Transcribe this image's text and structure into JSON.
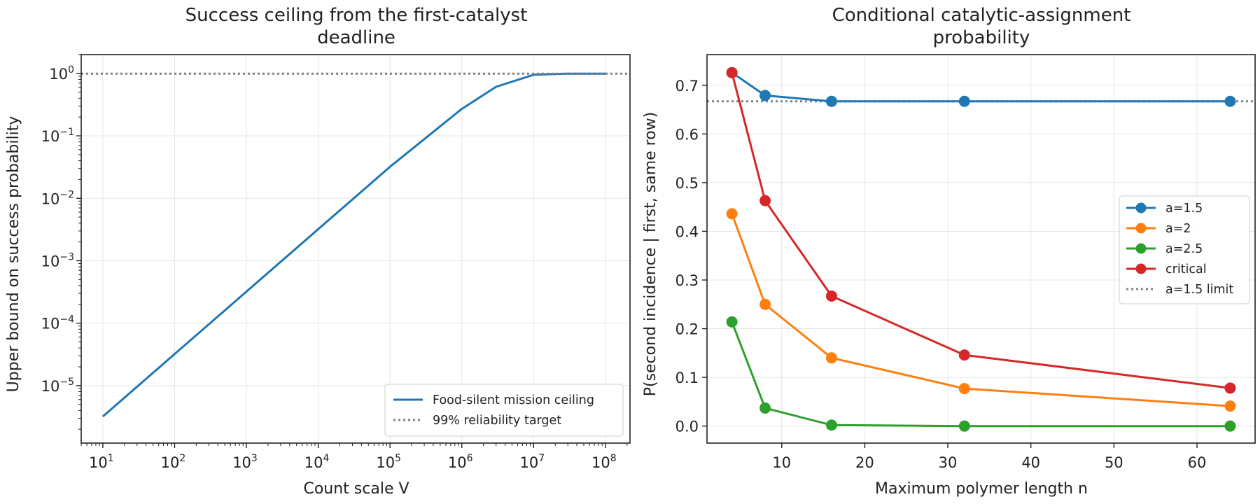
{
  "chart_data": [
    {
      "type": "line",
      "title_lines": [
        "Success ceiling from the first-catalyst",
        "deadline"
      ],
      "xlabel": "Count scale V",
      "ylabel": "Upper bound on success probability",
      "xscale": "log",
      "yscale": "log",
      "xlim": [
        5,
        220000000.0
      ],
      "ylim": [
        1.2e-06,
        2.0
      ],
      "xtick_exponents": [
        "1",
        "2",
        "3",
        "4",
        "5",
        "6",
        "7",
        "8"
      ],
      "ytick_exponents": [
        "0",
        "−1",
        "−2",
        "−3",
        "−4",
        "−5"
      ],
      "tick_base": "10",
      "grid": true,
      "legend_position": "lower right",
      "series": [
        {
          "name": "Food-silent mission ceiling",
          "color": "#1f77b4",
          "style": "solid",
          "x": [
            10,
            100,
            1000,
            10000,
            100000,
            1000000,
            3000000,
            10000000,
            30000000,
            100000000
          ],
          "y": [
            3.2e-06,
            3.2e-05,
            0.00032,
            0.0032,
            0.032,
            0.27,
            0.61,
            0.95,
            0.99,
            0.99
          ]
        },
        {
          "name": "99% reliability target",
          "color": "#808080",
          "style": "dotted",
          "y_const": 0.99
        }
      ]
    },
    {
      "type": "line",
      "title_lines": [
        "Conditional catalytic-assignment",
        "probability"
      ],
      "xlabel": "Maximum polymer length n",
      "ylabel": "P(second incidence | first, same row)",
      "xlim": [
        1,
        67
      ],
      "ylim": [
        -0.035,
        0.763
      ],
      "xticks": [
        10,
        20,
        30,
        40,
        50,
        60
      ],
      "yticks": [
        "0.0",
        "0.1",
        "0.2",
        "0.3",
        "0.4",
        "0.5",
        "0.6",
        "0.7"
      ],
      "grid": true,
      "legend_position": "center right",
      "x": [
        4,
        8,
        16,
        32,
        64
      ],
      "series": [
        {
          "name": "a=1.5",
          "color": "#1f77b4",
          "marker": "o",
          "values": [
            0.726,
            0.679,
            0.667,
            0.667,
            0.667
          ]
        },
        {
          "name": "a=2",
          "color": "#ff7f0e",
          "marker": "o",
          "values": [
            0.436,
            0.25,
            0.14,
            0.077,
            0.041
          ]
        },
        {
          "name": "a=2.5",
          "color": "#2ca02c",
          "marker": "o",
          "values": [
            0.214,
            0.037,
            0.002,
            0.0,
            0.0
          ]
        },
        {
          "name": "critical",
          "color": "#d62728",
          "marker": "o",
          "values": [
            0.726,
            0.463,
            0.267,
            0.146,
            0.078
          ]
        },
        {
          "name": "a=1.5 limit",
          "color": "#808080",
          "style": "dotted",
          "y_const": 0.667
        }
      ]
    }
  ]
}
